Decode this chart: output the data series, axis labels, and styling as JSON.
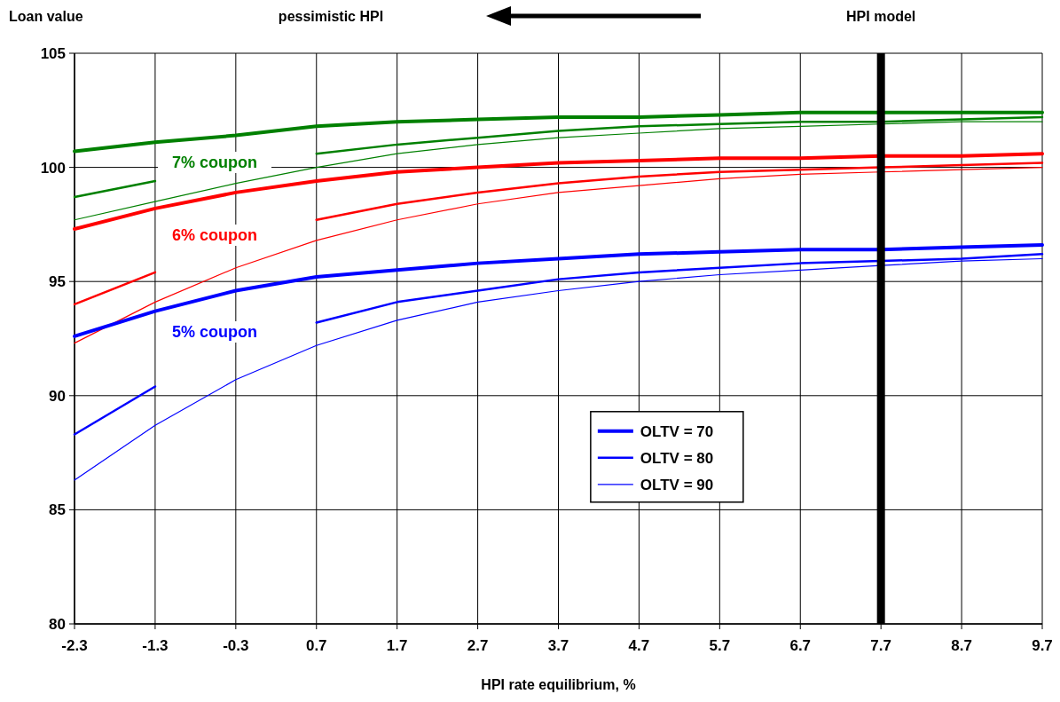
{
  "chart_data": {
    "type": "line",
    "title": "pessimistic HPI",
    "xlabel": "HPI rate equilibrium, %",
    "ylabel": "Loan value",
    "x": [
      -2.3,
      -1.3,
      -0.3,
      0.7,
      1.7,
      2.7,
      3.7,
      4.7,
      5.7,
      6.7,
      7.7,
      8.7,
      9.7
    ],
    "xlim": [
      -2.3,
      9.7
    ],
    "xticks": [
      -2.3,
      -1.3,
      -0.3,
      0.7,
      1.7,
      2.7,
      3.7,
      4.7,
      5.7,
      6.7,
      7.7,
      8.7,
      9.7
    ],
    "ylim": [
      80,
      105
    ],
    "yticks": [
      80,
      85,
      90,
      95,
      100,
      105
    ],
    "grid": true,
    "legend": "bottom",
    "line_style": "solid",
    "series": [
      {
        "color": "#008000",
        "values": [
          100.7,
          101.1,
          101.4,
          101.8,
          102.0,
          102.1,
          102.2,
          102.2,
          102.3,
          102.4,
          102.4,
          102.4,
          102.4
        ]
      },
      {
        "color": "#008000",
        "values": [
          98.7,
          99.4,
          null,
          100.6,
          101.0,
          101.3,
          101.6,
          101.8,
          101.9,
          102.0,
          102.0,
          102.1,
          102.2
        ]
      },
      {
        "color": "#008000",
        "values": [
          97.7,
          98.5,
          99.3,
          100.0,
          100.6,
          101.0,
          101.3,
          101.5,
          101.7,
          101.8,
          101.9,
          102.0,
          102.0
        ]
      },
      {
        "color": "#ff0000",
        "values": [
          97.3,
          98.2,
          98.9,
          99.4,
          99.8,
          100.0,
          100.2,
          100.3,
          100.4,
          100.4,
          100.5,
          100.5,
          100.6
        ]
      },
      {
        "color": "#ff0000",
        "values": [
          94.0,
          95.4,
          null,
          97.7,
          98.4,
          98.9,
          99.3,
          99.6,
          99.8,
          99.9,
          100.0,
          100.1,
          100.2
        ]
      },
      {
        "color": "#ff0000",
        "values": [
          92.3,
          94.1,
          95.6,
          96.8,
          97.7,
          98.4,
          98.9,
          99.2,
          99.5,
          99.7,
          99.8,
          99.9,
          100.0
        ]
      },
      {
        "name": "OLTV = 70",
        "color": "#0000ff",
        "values": [
          92.6,
          93.7,
          94.6,
          95.2,
          95.5,
          95.8,
          96.0,
          96.2,
          96.3,
          96.4,
          96.4,
          96.5,
          96.6
        ]
      },
      {
        "name": "OLTV = 80",
        "color": "#0000ff",
        "values": [
          88.3,
          90.4,
          null,
          93.2,
          94.1,
          94.6,
          95.1,
          95.4,
          95.6,
          95.8,
          95.9,
          96.0,
          96.2
        ]
      },
      {
        "name": "OLTV = 90",
        "color": "#0000ff",
        "values": [
          86.3,
          88.7,
          90.7,
          92.2,
          93.3,
          94.1,
          94.6,
          95.0,
          95.3,
          95.5,
          95.7,
          95.9,
          96.0
        ]
      }
    ],
    "annotations": [
      "7% coupon",
      "6% coupon",
      "5% coupon"
    ],
    "ref_lines": [
      {
        "axis": "x",
        "value": 7.7,
        "label": "HPI model",
        "color": "#000000"
      }
    ]
  }
}
